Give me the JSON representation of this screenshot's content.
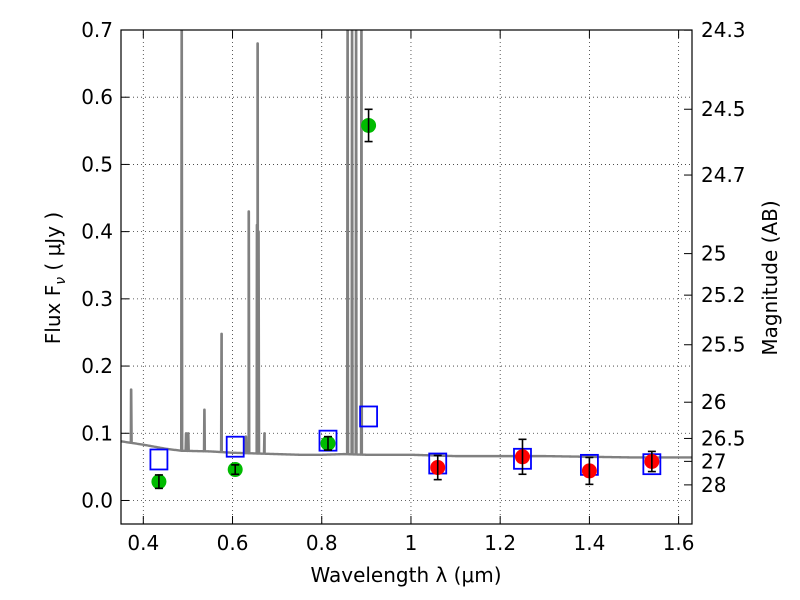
{
  "chart_data": {
    "type": "scatter",
    "xlabel": "Wavelength  λ (μm)",
    "ylabel": "Flux  F",
    "ylabel_subscript": "ν",
    "ylabel_units": " ( μJy )",
    "y2label": "Magnitude (AB)",
    "xlim": [
      0.35,
      1.63
    ],
    "ylim": [
      -0.035,
      0.7
    ],
    "grid": true,
    "x_ticks": [
      0.4,
      0.6,
      0.8,
      1.0,
      1.2,
      1.4,
      1.6
    ],
    "x_tick_labels": [
      "0.4",
      "0.6",
      "0.8",
      "1",
      "1.2",
      "1.4",
      "1.6"
    ],
    "y_ticks": [
      0.0,
      0.1,
      0.2,
      0.3,
      0.4,
      0.5,
      0.6,
      0.7
    ],
    "y_tick_labels": [
      "0.0",
      "0.1",
      "0.2",
      "0.3",
      "0.4",
      "0.5",
      "0.6",
      "0.7"
    ],
    "mag_ticks": [
      {
        "label": "24.3",
        "flux": 0.6998
      },
      {
        "label": "24.5",
        "flux": 0.5821
      },
      {
        "label": "24.7",
        "flux": 0.4842
      },
      {
        "label": "25",
        "flux": 0.3673
      },
      {
        "label": "25.2",
        "flux": 0.3055
      },
      {
        "label": "25.5",
        "flux": 0.2317
      },
      {
        "label": "26",
        "flux": 0.1462
      },
      {
        "label": "26.5",
        "flux": 0.0923
      },
      {
        "label": "27",
        "flux": 0.0582
      },
      {
        "label": "28",
        "flux": 0.0232
      }
    ],
    "series": [
      {
        "kind": "model_sed",
        "color": "#808080",
        "continuum": [
          [
            0.35,
            0.088
          ],
          [
            0.4,
            0.083
          ],
          [
            0.45,
            0.077
          ],
          [
            0.485,
            0.074
          ],
          [
            0.55,
            0.073
          ],
          [
            0.6,
            0.071
          ],
          [
            0.65,
            0.07
          ],
          [
            0.7,
            0.069
          ],
          [
            0.75,
            0.068
          ],
          [
            0.8,
            0.068
          ],
          [
            0.85,
            0.069
          ],
          [
            0.9,
            0.068
          ],
          [
            1.0,
            0.068
          ],
          [
            1.1,
            0.066
          ],
          [
            1.2,
            0.066
          ],
          [
            1.3,
            0.066
          ],
          [
            1.4,
            0.065
          ],
          [
            1.5,
            0.064
          ],
          [
            1.63,
            0.064
          ]
        ],
        "lines": [
          {
            "x": 0.3727,
            "peak": 0.165
          },
          {
            "x": 0.4861,
            "peak": 0.7
          },
          {
            "x": 0.4959,
            "peak": 0.1
          },
          {
            "x": 0.5007,
            "peak": 0.1
          },
          {
            "x": 0.537,
            "peak": 0.135
          },
          {
            "x": 0.5755,
            "peak": 0.248
          },
          {
            "x": 0.63,
            "peak": 0.095
          },
          {
            "x": 0.6364,
            "peak": 0.43
          },
          {
            "x": 0.6548,
            "peak": 0.41
          },
          {
            "x": 0.6563,
            "peak": 0.68
          },
          {
            "x": 0.6583,
            "peak": 0.4
          },
          {
            "x": 0.6717,
            "peak": 0.1
          },
          {
            "x": 0.858,
            "peak": 0.7
          },
          {
            "x": 0.868,
            "peak": 0.7
          },
          {
            "x": 0.877,
            "peak": 0.7
          },
          {
            "x": 0.889,
            "peak": 0.7
          }
        ]
      },
      {
        "kind": "model_photometry",
        "marker": "open-square",
        "color": "#0000ff",
        "points": [
          [
            0.435,
            0.061
          ],
          [
            0.606,
            0.08
          ],
          [
            0.814,
            0.089
          ],
          [
            0.905,
            0.125
          ],
          [
            1.06,
            0.055
          ],
          [
            1.25,
            0.062
          ],
          [
            1.4,
            0.053
          ],
          [
            1.54,
            0.054
          ]
        ]
      },
      {
        "kind": "observed_hst_optical",
        "marker": "filled-circle",
        "color": "#00bb00",
        "points": [
          {
            "x": 0.435,
            "y": 0.028,
            "err": 0.01
          },
          {
            "x": 0.606,
            "y": 0.046,
            "err": 0.007
          },
          {
            "x": 0.814,
            "y": 0.085,
            "err": 0.01
          },
          {
            "x": 0.905,
            "y": 0.558,
            "err": 0.024
          }
        ]
      },
      {
        "kind": "observed_hst_nir",
        "marker": "filled-circle",
        "color": "#ff0000",
        "points": [
          {
            "x": 1.06,
            "y": 0.049,
            "err": 0.018
          },
          {
            "x": 1.25,
            "y": 0.065,
            "err": 0.026
          },
          {
            "x": 1.4,
            "y": 0.044,
            "err": 0.02
          },
          {
            "x": 1.54,
            "y": 0.058,
            "err": 0.015
          }
        ]
      }
    ]
  }
}
